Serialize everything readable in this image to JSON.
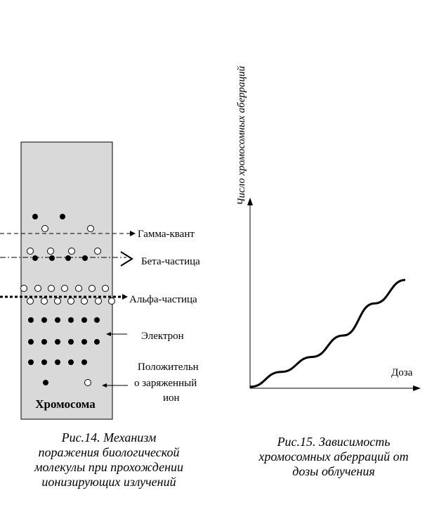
{
  "figure14": {
    "chromosome_label": "Хромосома",
    "labels": {
      "gamma": "Гамма-квант",
      "beta": "Бета-частица",
      "alpha": "Альфа-частица",
      "electron": "Электрон",
      "ion_line1": "Положительн",
      "ion_line2": "о заряженный",
      "ion_line3": "ион"
    },
    "caption": {
      "line1": "Рис.14. Механизм",
      "line2": "поражения биологической",
      "line3": "молекулы при прохождении",
      "line4": "ионизирующих излучений"
    }
  },
  "figure15": {
    "caption": {
      "line1": "Рис.15. Зависимость",
      "line2": "хромосомных аберраций от",
      "line3": "дозы облучения"
    }
  },
  "chart_data": {
    "type": "line",
    "title": "",
    "xlabel": "Доза",
    "ylabel": "Число хромосомных аберраций",
    "series": [
      {
        "x": [
          0,
          0.2,
          0.4,
          0.6,
          0.8,
          1.0
        ],
        "y": [
          0,
          0.14,
          0.28,
          0.48,
          0.78,
          1.0
        ]
      }
    ],
    "grid": false
  }
}
